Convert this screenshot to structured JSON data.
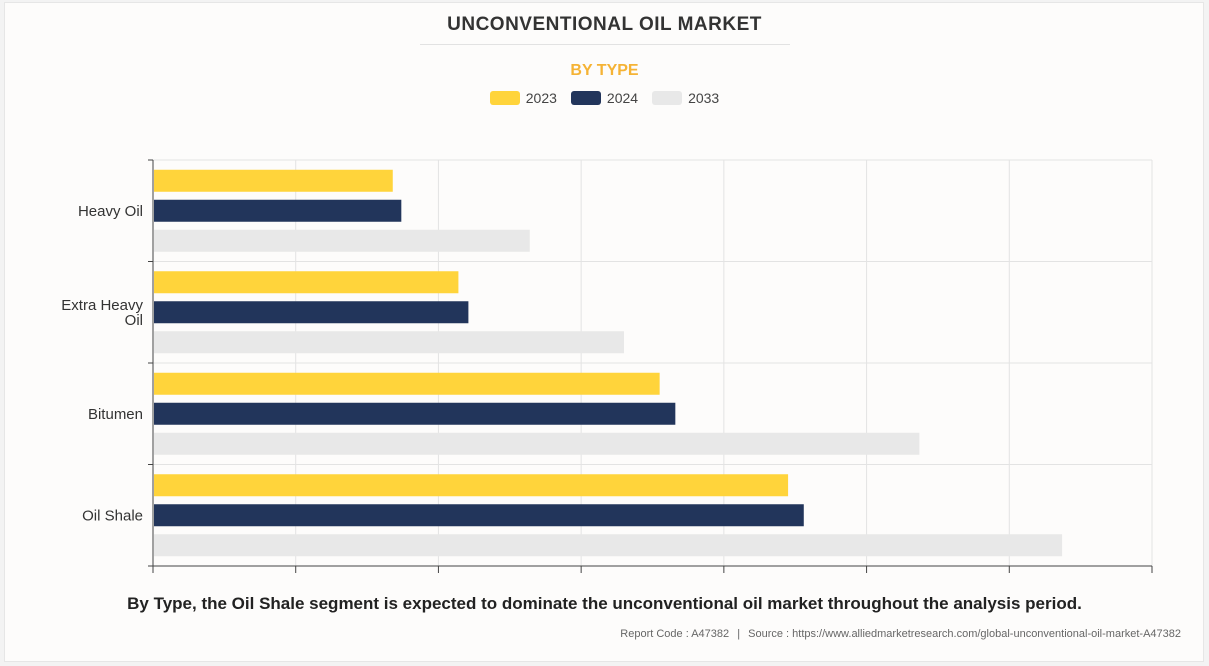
{
  "header": {
    "title": "UNCONVENTIONAL OIL MARKET",
    "subtitle": "BY TYPE"
  },
  "caption": "By Type, the Oil Shale segment is expected to dominate the unconventional oil market throughout the analysis period.",
  "footer": {
    "report_code": "Report Code : A47382",
    "separator": "|",
    "source": "Source : https://www.alliedmarketresearch.com/global-unconventional-oil-market-A47382"
  },
  "colors": {
    "accent": "#f5b335",
    "series_2023": "#ffd43b",
    "series_2024": "#22355b",
    "series_2033": "#e8e8e8",
    "grid": "#e3e3e3",
    "axis": "#444444"
  },
  "chart_data": {
    "type": "bar",
    "orientation": "horizontal",
    "title": "UNCONVENTIONAL OIL MARKET",
    "subtitle": "BY TYPE",
    "categories": [
      "Heavy Oil",
      "Extra Heavy Oil",
      "Bitumen",
      "Oil Shale"
    ],
    "category_lines": [
      [
        "Heavy Oil"
      ],
      [
        "Extra Heavy",
        "Oil"
      ],
      [
        "Bitumen"
      ],
      [
        "Oil Shale"
      ]
    ],
    "series": [
      {
        "name": "2023",
        "color": "#ffd43b",
        "values": [
          1.68,
          2.14,
          3.55,
          4.45
        ]
      },
      {
        "name": "2024",
        "color": "#22355b",
        "values": [
          1.74,
          2.21,
          3.66,
          4.56
        ]
      },
      {
        "name": "2033",
        "color": "#e8e8e8",
        "values": [
          2.64,
          3.3,
          5.37,
          6.37
        ]
      }
    ],
    "xlim": [
      0,
      7
    ],
    "x_ticks": [
      0,
      1,
      2,
      3,
      4,
      5,
      6,
      7
    ],
    "x_tick_labels_shown": false,
    "grid": true,
    "legend": "top-center"
  }
}
